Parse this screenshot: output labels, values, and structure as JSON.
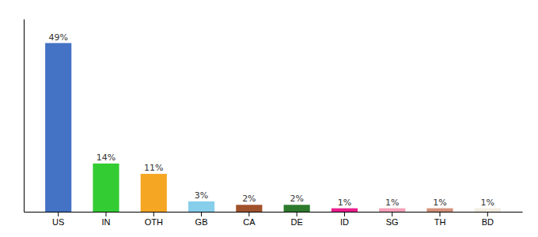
{
  "chart_data": {
    "type": "bar",
    "categories": [
      "US",
      "IN",
      "OTH",
      "GB",
      "CA",
      "DE",
      "ID",
      "SG",
      "TH",
      "BD"
    ],
    "values": [
      49,
      14,
      11,
      3,
      2,
      2,
      1,
      1,
      1,
      1
    ],
    "value_labels": [
      "49%",
      "14%",
      "11%",
      "3%",
      "2%",
      "2%",
      "1%",
      "1%",
      "1%",
      "1%"
    ],
    "colors": [
      "#4472c4",
      "#33cc33",
      "#f5a623",
      "#87ceeb",
      "#a0522d",
      "#2d7a2d",
      "#e91e8c",
      "#f4a0b8",
      "#d4917a",
      "#f0ece0"
    ],
    "ylim": [
      0,
      56
    ],
    "data_labels": true,
    "tick_labels": "x",
    "grid": false
  }
}
